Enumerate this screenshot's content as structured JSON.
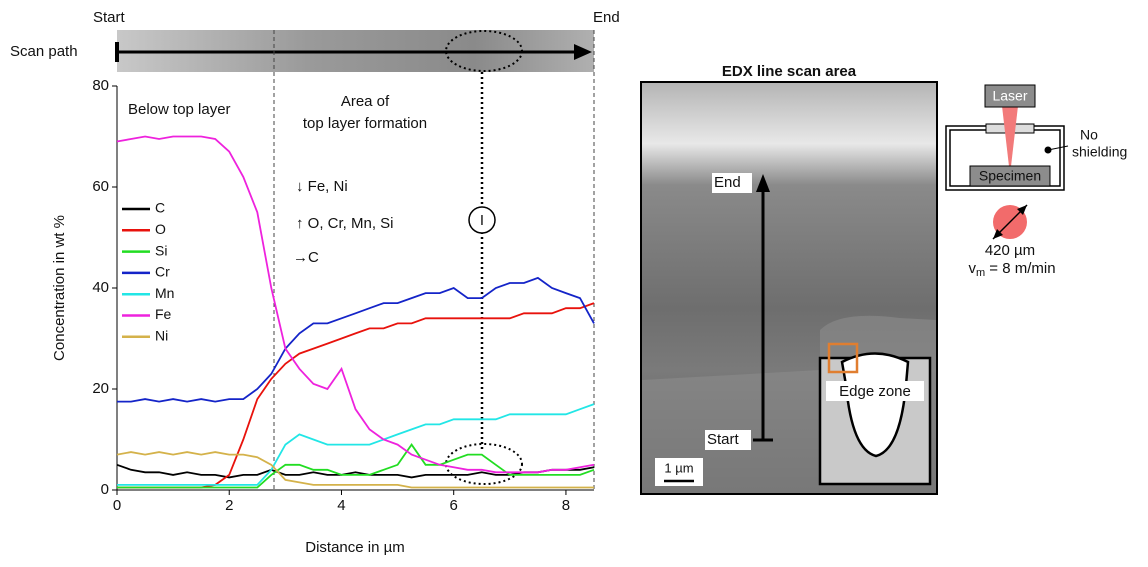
{
  "chart_data": {
    "type": "line",
    "xlabel": "Distance in µm",
    "ylabel": "Concentration in wt %",
    "xlim": [
      0,
      8.5
    ],
    "ylim": [
      0,
      80
    ],
    "xticks": [
      0,
      2,
      4,
      6,
      8
    ],
    "yticks": [
      0,
      20,
      40,
      60,
      80
    ],
    "x": [
      0,
      0.25,
      0.5,
      0.75,
      1,
      1.25,
      1.5,
      1.75,
      2,
      2.25,
      2.5,
      2.75,
      3,
      3.25,
      3.5,
      3.75,
      4,
      4.25,
      4.5,
      4.75,
      5,
      5.25,
      5.5,
      5.75,
      6,
      6.25,
      6.5,
      6.75,
      7,
      7.25,
      7.5,
      7.75,
      8,
      8.25,
      8.5
    ],
    "series": [
      {
        "name": "C",
        "color": "#000000",
        "values": [
          5,
          4,
          3.5,
          3.5,
          3,
          3.5,
          3,
          3,
          2.5,
          3,
          3,
          4,
          3,
          3,
          3.5,
          3,
          3,
          3.5,
          3,
          3,
          3,
          2.5,
          3,
          3,
          3,
          3,
          3.5,
          3,
          3,
          3.5,
          3.5,
          4,
          4,
          4,
          4.5
        ]
      },
      {
        "name": "O",
        "color": "#e8120c",
        "values": [
          0.5,
          0.5,
          0.5,
          0.5,
          0.5,
          0.5,
          0.5,
          1,
          3,
          10,
          18,
          22,
          25,
          27,
          28,
          29,
          30,
          31,
          32,
          32,
          33,
          33,
          34,
          34,
          34,
          34,
          34,
          34,
          34,
          35,
          35,
          35,
          36,
          36,
          37
        ]
      },
      {
        "name": "Si",
        "color": "#22dd22",
        "values": [
          0.5,
          0.5,
          0.5,
          0.5,
          0.5,
          0.5,
          0.5,
          0.5,
          0.5,
          0.5,
          0.5,
          3,
          5,
          5,
          4,
          4,
          3,
          3,
          3,
          4,
          5,
          9,
          5,
          5,
          6,
          7,
          7,
          5,
          3,
          3,
          3,
          3,
          3,
          3,
          4
        ]
      },
      {
        "name": "Cr",
        "color": "#1424c8",
        "values": [
          17.5,
          17.5,
          18,
          17.5,
          18,
          17.5,
          18,
          17.5,
          18,
          18,
          20,
          23,
          28,
          31,
          33,
          33,
          34,
          35,
          36,
          37,
          37,
          38,
          39,
          39,
          40,
          38,
          38,
          40,
          41,
          41,
          42,
          40,
          39,
          38,
          33
        ]
      },
      {
        "name": "Mn",
        "color": "#22e6e6",
        "values": [
          1,
          1,
          1,
          1,
          1,
          1,
          1,
          1,
          1,
          1,
          1,
          4,
          9,
          11,
          10,
          9,
          9,
          9,
          9,
          10,
          11,
          12,
          13,
          13,
          14,
          14,
          14,
          14,
          15,
          15,
          15,
          15,
          15,
          16,
          17
        ]
      },
      {
        "name": "Fe",
        "color": "#ee22dd",
        "values": [
          69,
          69.5,
          70,
          69.5,
          70,
          70,
          70,
          69.5,
          67,
          62,
          55,
          40,
          28,
          24,
          21,
          20,
          24,
          16,
          12,
          10,
          9,
          7,
          6,
          5,
          4.5,
          4,
          4,
          3.5,
          3.5,
          3.5,
          3.5,
          4,
          4,
          4.5,
          5
        ]
      },
      {
        "name": "Ni",
        "color": "#d4b24a",
        "values": [
          7,
          7.5,
          7,
          7.5,
          7,
          7.5,
          7,
          7.5,
          7,
          7,
          6.5,
          5,
          2,
          1.5,
          1,
          1,
          1,
          1,
          1,
          1,
          1,
          0.5,
          0.5,
          0.5,
          0.5,
          0.5,
          0.5,
          0.5,
          0.5,
          0.5,
          0.5,
          0.5,
          0.5,
          0.5,
          0.5
        ]
      }
    ],
    "annotations": {
      "region_1": "Below top layer",
      "region_2_line1": "Area of",
      "region_2_line2": "top layer formation",
      "trend_down": "↓ Fe, Ni",
      "trend_up": "↑ O, Cr, Mn, Si",
      "trend_flat": "→C",
      "marker": "I"
    }
  },
  "scan_strip": {
    "label": "Scan path",
    "start": "Start",
    "end": "End"
  },
  "sem_panel": {
    "title": "EDX line scan area",
    "end": "End",
    "start": "Start",
    "inset": "Edge zone",
    "scale": "1 µm"
  },
  "setup": {
    "laser": "Laser",
    "specimen": "Specimen",
    "shield_line1": "No",
    "shield_line2": "shielding",
    "spot": "420 µm",
    "speed_v": "v",
    "speed_sub": "m",
    "speed_rest": " = 8 m/min"
  }
}
